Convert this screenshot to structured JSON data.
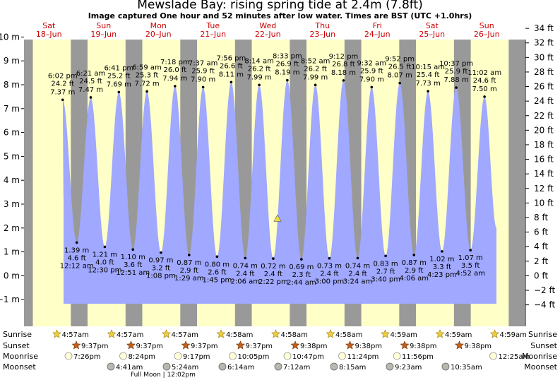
{
  "title": "Mewslade Bay: rising  spring tide at 2.4m (7.8ft)",
  "subtitle": "Image captured One hour and 52 minutes after low water. Times are BST (UTC +1.0hrs)",
  "colors": {
    "day_bg": "#ffffc8",
    "night_bg": "#999999",
    "tide_fill": "#a0a8ff",
    "date_label": "#cc0000",
    "marker": "#eedd44"
  },
  "chart_data": {
    "type": "area",
    "title": "Mewslade Bay: rising  spring tide at 2.4m (7.8ft)",
    "subtitle": "Image captured One hour and 52 minutes after low water. Times are BST (UTC +1.0hrs)",
    "x_unit": "days from Sat 18-Jun 00:00 (BST)",
    "ylim_m": [
      -1.5,
      10.5
    ],
    "left_axis": {
      "unit": "m",
      "ticks": [
        -1,
        0,
        1,
        2,
        3,
        4,
        5,
        6,
        7,
        8,
        9,
        10
      ],
      "labels": [
        "−1 m",
        "0 m",
        "1 m",
        "2 m",
        "3 m",
        "4 m",
        "5 m",
        "6 m",
        "7 m",
        "8 m",
        "9 m",
        "10 m"
      ]
    },
    "right_axis": {
      "unit": "ft",
      "ticks": [
        -4,
        -2,
        0,
        2,
        4,
        6,
        8,
        10,
        12,
        14,
        16,
        18,
        20,
        22,
        24,
        26,
        28,
        30,
        32,
        34
      ],
      "labels": [
        "−4 ft",
        "−2 ft",
        "0 ft",
        "2 ft",
        "4 ft",
        "6 ft",
        "8 ft",
        "10 ft",
        "12 ft",
        "14 ft",
        "16 ft",
        "18 ft",
        "20 ft",
        "22 ft",
        "24 ft",
        "26 ft",
        "28 ft",
        "30 ft",
        "32 ft",
        "34 ft"
      ]
    },
    "day_labels": [
      {
        "day": "Sat",
        "date": "18–Jun"
      },
      {
        "day": "Sun",
        "date": "19–Jun"
      },
      {
        "day": "Mon",
        "date": "20–Jun"
      },
      {
        "day": "Tue",
        "date": "21–Jun"
      },
      {
        "day": "Wed",
        "date": "22–Jun"
      },
      {
        "day": "Thu",
        "date": "23–Jun"
      },
      {
        "day": "Fri",
        "date": "24–Jun"
      },
      {
        "day": "Sat",
        "date": "25–Jun"
      },
      {
        "day": "Sun",
        "date": "26–Jun"
      }
    ],
    "tide_events": [
      {
        "type": "high",
        "day": 0,
        "time": "6:02 pm",
        "ft": "24.2 ft",
        "m": 7.37,
        "m_label": "7.37 m"
      },
      {
        "type": "low",
        "day": 1,
        "time": "12:12 am",
        "ft": "4.6 ft",
        "m": 1.39,
        "m_label": "1.39 m"
      },
      {
        "type": "high",
        "day": 1,
        "time": "6:21 am",
        "ft": "24.5 ft",
        "m": 7.47,
        "m_label": "7.47 m"
      },
      {
        "type": "low",
        "day": 1,
        "time": "12:30 pm",
        "ft": "4.0 ft",
        "m": 1.21,
        "m_label": "1.21 m"
      },
      {
        "type": "high",
        "day": 1,
        "time": "6:41 pm",
        "ft": "25.2 ft",
        "m": 7.69,
        "m_label": "7.69 m"
      },
      {
        "type": "low",
        "day": 2,
        "time": "12:51 am",
        "ft": "3.6 ft",
        "m": 1.1,
        "m_label": "1.10 m"
      },
      {
        "type": "high",
        "day": 2,
        "time": "6:59 am",
        "ft": "25.3 ft",
        "m": 7.72,
        "m_label": "7.72 m"
      },
      {
        "type": "low",
        "day": 2,
        "time": "1:08 pm",
        "ft": "3.2 ft",
        "m": 0.97,
        "m_label": "0.97 m"
      },
      {
        "type": "high",
        "day": 2,
        "time": "7:18 pm",
        "ft": "26.0 ft",
        "m": 7.94,
        "m_label": "7.94 m"
      },
      {
        "type": "low",
        "day": 3,
        "time": "1:29 am",
        "ft": "2.9 ft",
        "m": 0.87,
        "m_label": "0.87 m"
      },
      {
        "type": "high",
        "day": 3,
        "time": "7:37 am",
        "ft": "25.9 ft",
        "m": 7.9,
        "m_label": "7.90 m"
      },
      {
        "type": "low",
        "day": 3,
        "time": "1:45 pm",
        "ft": "2.6 ft",
        "m": 0.8,
        "m_label": "0.80 m"
      },
      {
        "type": "high",
        "day": 3,
        "time": "7:56 pm",
        "ft": "26.6 ft",
        "m": 8.11,
        "m_label": "8.11 m"
      },
      {
        "type": "low",
        "day": 4,
        "time": "2:06 am",
        "ft": "2.4 ft",
        "m": 0.74,
        "m_label": "0.74 m"
      },
      {
        "type": "high",
        "day": 4,
        "time": "8:14 am",
        "ft": "26.2 ft",
        "m": 7.99,
        "m_label": "7.99 m"
      },
      {
        "type": "low",
        "day": 4,
        "time": "2:22 pm",
        "ft": "2.4 ft",
        "m": 0.72,
        "m_label": "0.72 m"
      },
      {
        "type": "high",
        "day": 4,
        "time": "8:33 pm",
        "ft": "26.9 ft",
        "m": 8.19,
        "m_label": "8.19 m"
      },
      {
        "type": "low",
        "day": 5,
        "time": "2:44 am",
        "ft": "2.3 ft",
        "m": 0.69,
        "m_label": "0.69 m"
      },
      {
        "type": "high",
        "day": 5,
        "time": "8:52 am",
        "ft": "26.2 ft",
        "m": 7.99,
        "m_label": "7.99 m"
      },
      {
        "type": "low",
        "day": 5,
        "time": "3:00 pm",
        "ft": "2.4 ft",
        "m": 0.73,
        "m_label": "0.73 m"
      },
      {
        "type": "high",
        "day": 5,
        "time": "9:12 pm",
        "ft": "26.8 ft",
        "m": 8.18,
        "m_label": "8.18 m"
      },
      {
        "type": "low",
        "day": 6,
        "time": "3:24 am",
        "ft": "2.4 ft",
        "m": 0.74,
        "m_label": "0.74 m"
      },
      {
        "type": "high",
        "day": 6,
        "time": "9:32 am",
        "ft": "25.9 ft",
        "m": 7.9,
        "m_label": "7.90 m"
      },
      {
        "type": "low",
        "day": 6,
        "time": "3:40 pm",
        "ft": "2.7 ft",
        "m": 0.83,
        "m_label": "0.83 m"
      },
      {
        "type": "high",
        "day": 6,
        "time": "9:52 pm",
        "ft": "26.5 ft",
        "m": 8.07,
        "m_label": "8.07 m"
      },
      {
        "type": "low",
        "day": 7,
        "time": "4:06 am",
        "ft": "2.9 ft",
        "m": 0.87,
        "m_label": "0.87 m"
      },
      {
        "type": "high",
        "day": 7,
        "time": "10:15 am",
        "ft": "25.4 ft",
        "m": 7.73,
        "m_label": "7.73 m"
      },
      {
        "type": "low",
        "day": 7,
        "time": "4:23 pm",
        "ft": "3.3 ft",
        "m": 1.02,
        "m_label": "1.02 m"
      },
      {
        "type": "high",
        "day": 7,
        "time": "10:37 pm",
        "ft": "25.9 ft",
        "m": 7.88,
        "m_label": "7.88 m"
      },
      {
        "type": "low",
        "day": 8,
        "time": "4:52 am",
        "ft": "3.5 ft",
        "m": 1.07,
        "m_label": "1.07 m"
      },
      {
        "type": "high",
        "day": 8,
        "time": "11:02 am",
        "ft": "24.6 ft",
        "m": 7.5,
        "m_label": "7.50 m"
      }
    ],
    "current_marker": {
      "day": 4,
      "time": "4:14 pm",
      "m": 2.4
    },
    "sunrise": [
      "4:57am",
      "4:57am",
      "4:57am",
      "4:58am",
      "4:58am",
      "4:58am",
      "4:59am",
      "4:59am",
      "4:59am"
    ],
    "sunset": [
      "9:37pm",
      "9:37pm",
      "9:37pm",
      "9:37pm",
      "9:38pm",
      "9:38pm",
      "9:38pm",
      "9:38pm"
    ],
    "moonrise": [
      {
        "day": 1,
        "time": "7:26pm"
      },
      {
        "day": 2,
        "time": "8:24pm"
      },
      {
        "day": 3,
        "time": "9:17pm"
      },
      {
        "day": 4,
        "time": "10:05pm"
      },
      {
        "day": 5,
        "time": "10:47pm"
      },
      {
        "day": 6,
        "time": "11:24pm"
      },
      {
        "day": 7,
        "time": "11:56pm"
      },
      {
        "day": 8,
        "time": "12:25am"
      }
    ],
    "moonset": [
      {
        "day": 1,
        "time": "4:41am"
      },
      {
        "day": 2,
        "time": "5:24am"
      },
      {
        "day": 3,
        "time": "6:14am"
      },
      {
        "day": 4,
        "time": "7:12am"
      },
      {
        "day": 5,
        "time": "8:15am"
      },
      {
        "day": 6,
        "time": "9:23am"
      },
      {
        "day": 7,
        "time": "10:35am"
      }
    ],
    "moon_phase_note": "Full Moon | 12:02pm",
    "row_labels": {
      "sunrise": "Sunrise",
      "sunset": "Sunset",
      "moonrise": "Moonrise",
      "moonset": "Moonset"
    }
  }
}
